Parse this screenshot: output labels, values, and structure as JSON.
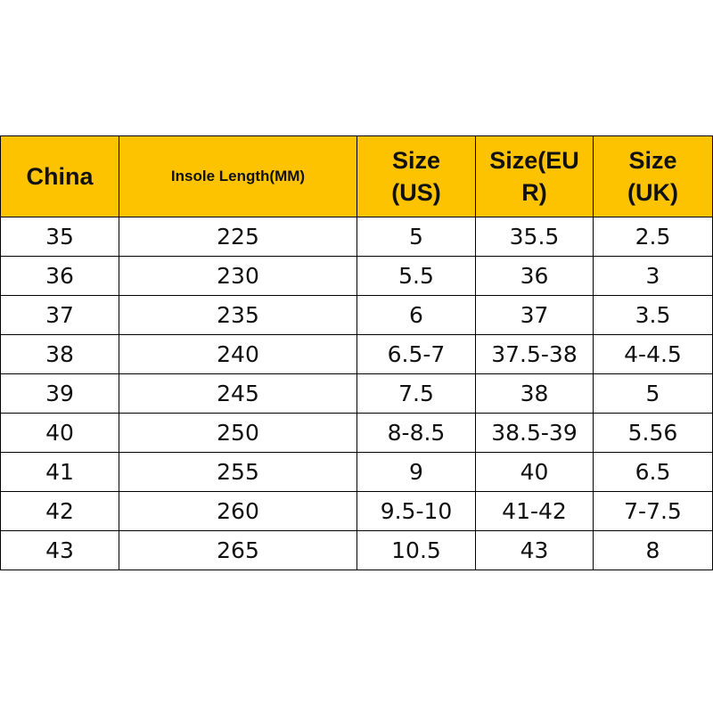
{
  "table": {
    "header": [
      [
        "China"
      ],
      [
        "Insole Length(MM)"
      ],
      [
        "Size",
        "(US)"
      ],
      [
        "Size(EU",
        "R)"
      ],
      [
        "Size",
        "(UK)"
      ]
    ],
    "rows": [
      [
        "35",
        "225",
        "5",
        "35.5",
        "2.5"
      ],
      [
        "36",
        "230",
        "5.5",
        "36",
        "3"
      ],
      [
        "37",
        "235",
        "6",
        "37",
        "3.5"
      ],
      [
        "38",
        "240",
        "6.5-7",
        "37.5-38",
        "4-4.5"
      ],
      [
        "39",
        "245",
        "7.5",
        "38",
        "5"
      ],
      [
        "40",
        "250",
        "8-8.5",
        "38.5-39",
        "5.56"
      ],
      [
        "41",
        "255",
        "9",
        "40",
        "6.5"
      ],
      [
        "42",
        "260",
        "9.5-10",
        "41-42",
        "7-7.5"
      ],
      [
        "43",
        "265",
        "10.5",
        "43",
        "8"
      ]
    ]
  }
}
